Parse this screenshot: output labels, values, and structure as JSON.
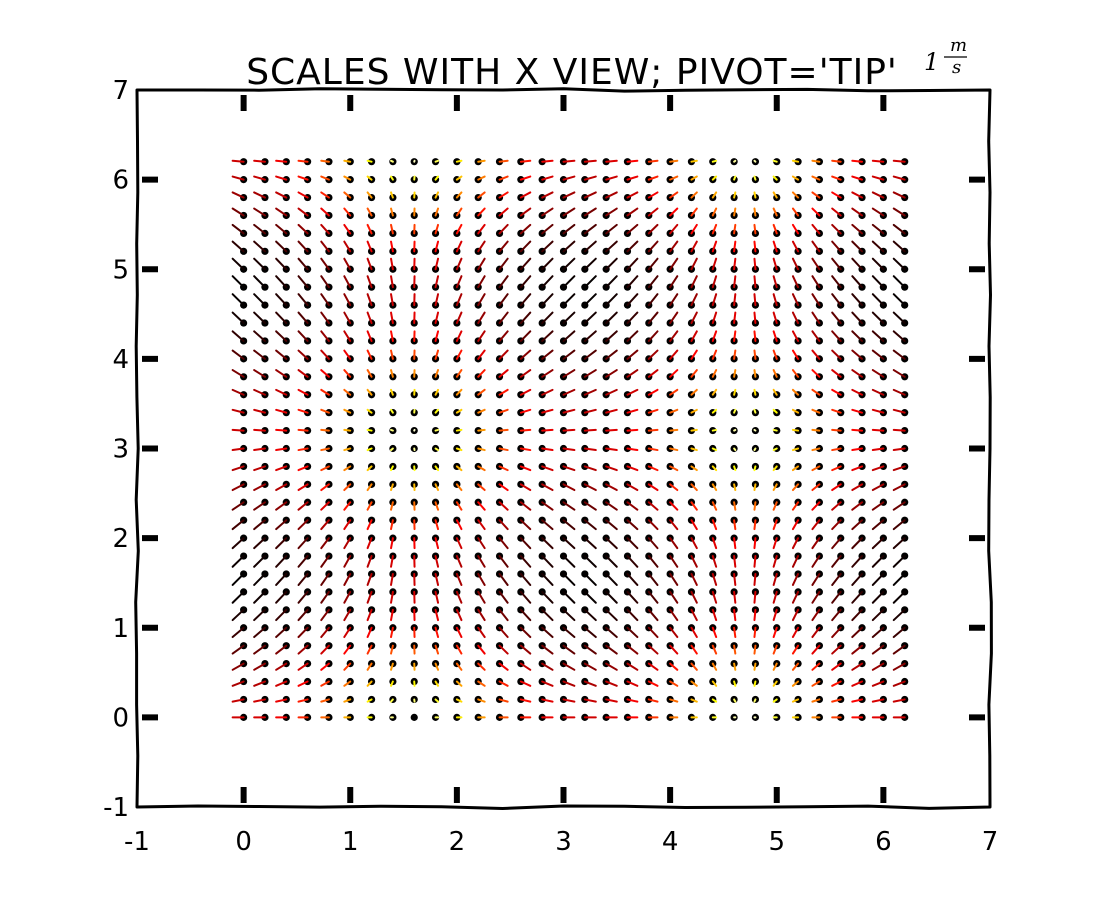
{
  "chart_data": {
    "type": "quiver",
    "title": "SCALES WITH X VIEW; PIVOT='TIP'",
    "title_unit_key": {
      "value": "1",
      "numerator": "m",
      "denominator": "s"
    },
    "pivot": "tip",
    "xlabel": "",
    "ylabel": "",
    "xlim": [
      -1,
      7
    ],
    "ylim": [
      -1,
      7
    ],
    "xticks": [
      "-1",
      "0",
      "1",
      "2",
      "3",
      "4",
      "5",
      "6",
      "7"
    ],
    "yticks": [
      "-1",
      "0",
      "1",
      "2",
      "3",
      "4",
      "5",
      "6",
      "7"
    ],
    "grid": false,
    "style": "xkcd",
    "field": {
      "x_range": [
        0,
        6.2
      ],
      "y_range": [
        0,
        6.2
      ],
      "step": 0.2,
      "u": "cos(x)",
      "v": "sin(y)",
      "colormap": "hot",
      "point_color": "#000000"
    }
  }
}
